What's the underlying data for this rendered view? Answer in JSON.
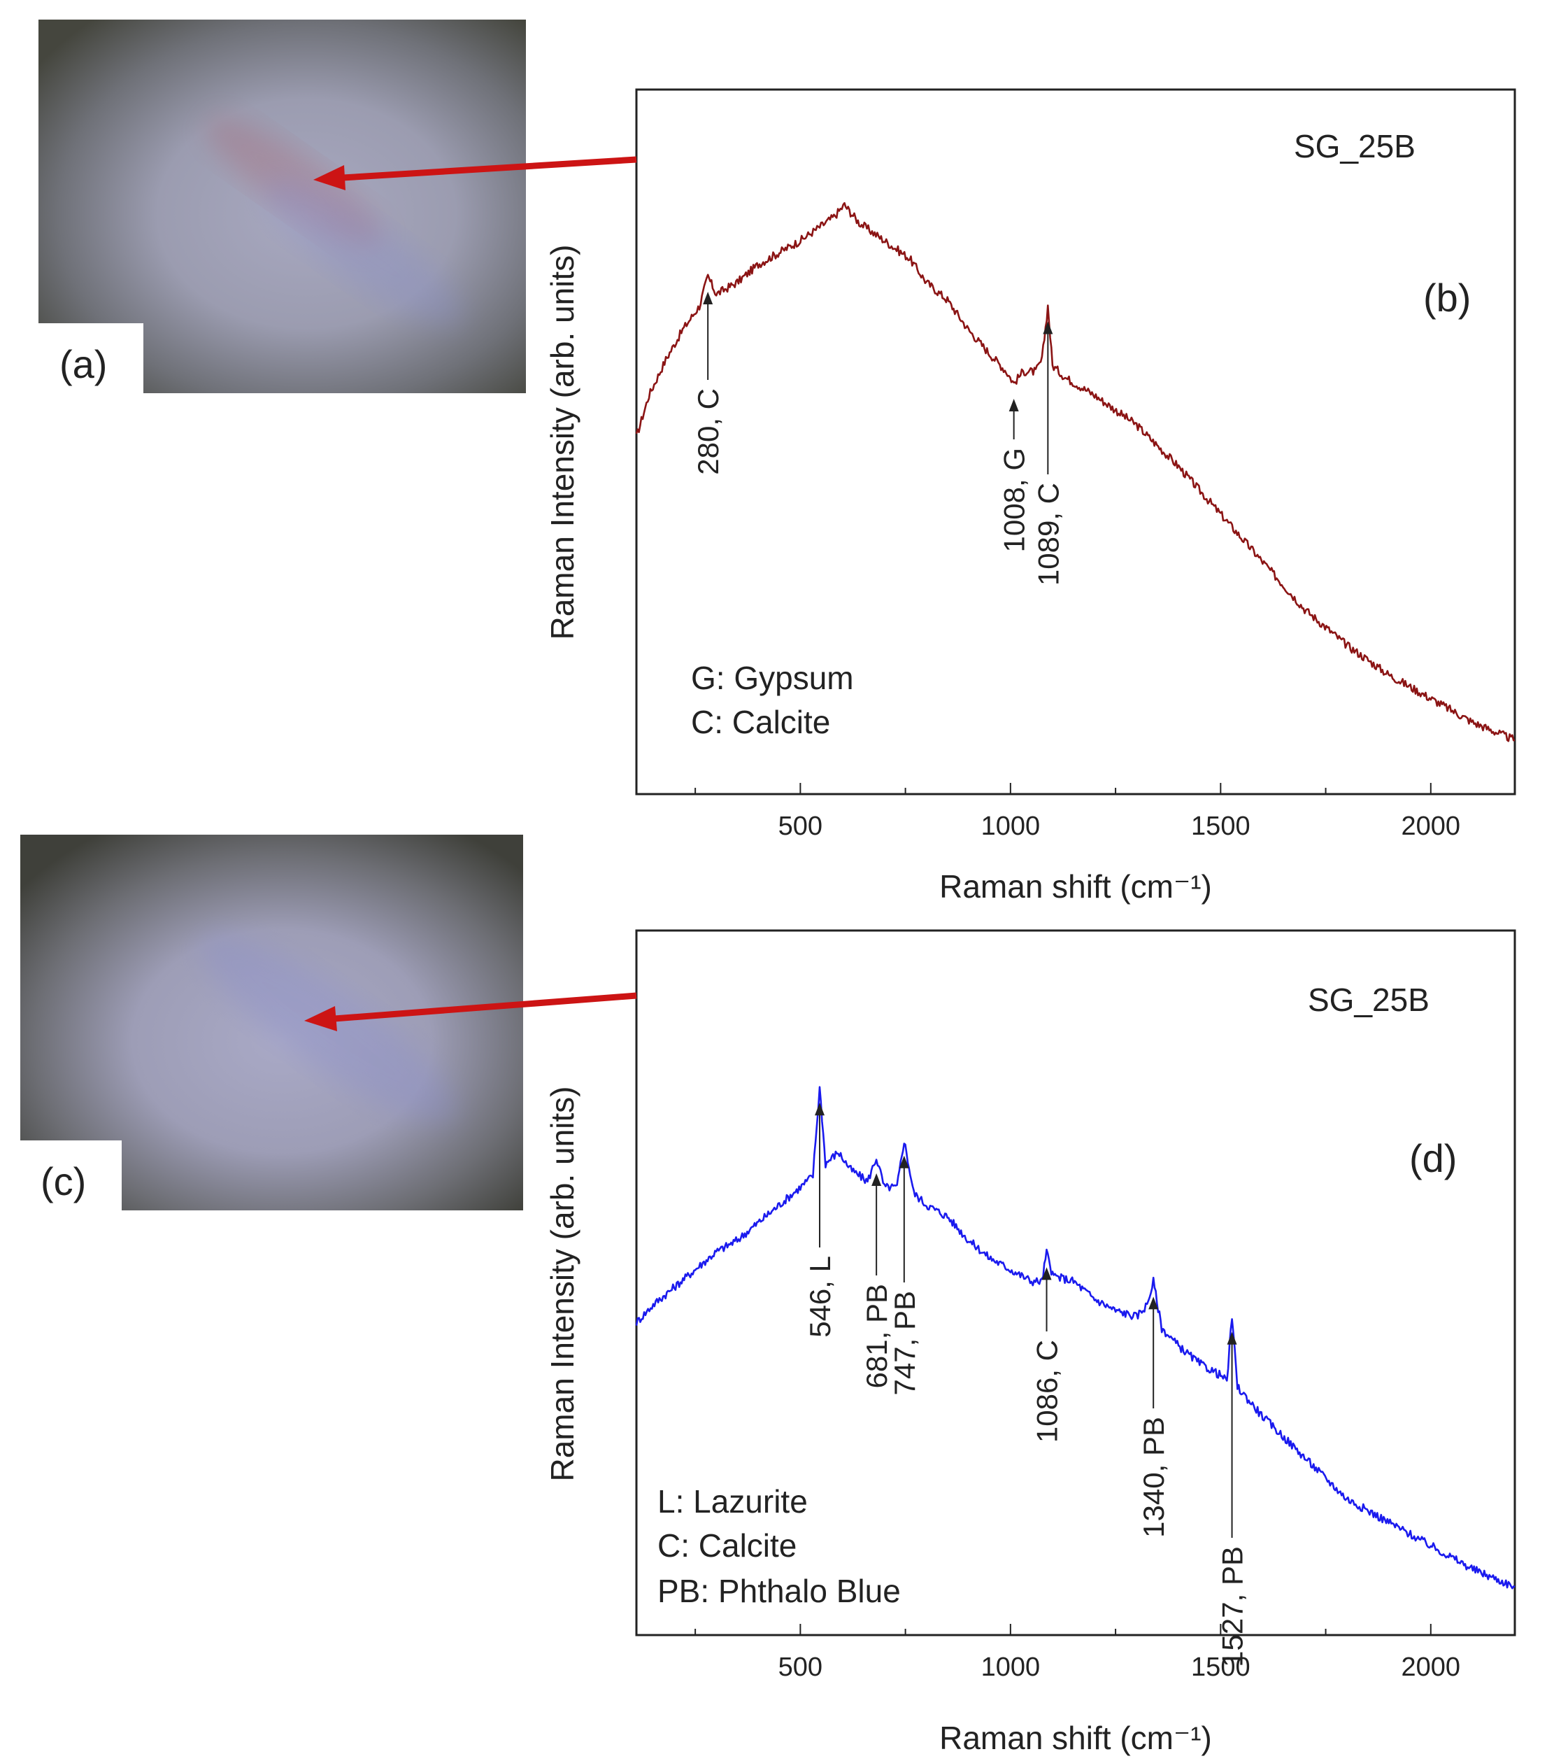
{
  "colors": {
    "spectrum_b": "#8b1414",
    "spectrum_d": "#1a1aee",
    "pointer_arrow": "#cc1414",
    "annotation_arrow": "#222222"
  },
  "panels": {
    "a": {
      "label": "(a)"
    },
    "c": {
      "label": "(c)"
    }
  },
  "chart_data": [
    {
      "type": "line",
      "panel_label": "(b)",
      "sample": "SG_25B",
      "xlabel": "Raman shift (cm⁻¹)",
      "ylabel": "Raman Intensity (arb. units)",
      "xlim": [
        110,
        2200
      ],
      "ylim": [
        0,
        100
      ],
      "xticks": [
        500,
        1000,
        1500,
        2000
      ],
      "series": [
        {
          "name": "SG_25B spectrum",
          "color": "#8b1414",
          "x": [
            110,
            140,
            180,
            220,
            260,
            280,
            300,
            350,
            400,
            450,
            500,
            540,
            580,
            605,
            640,
            680,
            720,
            760,
            800,
            850,
            900,
            950,
            990,
            1008,
            1030,
            1060,
            1075,
            1089,
            1100,
            1130,
            1200,
            1300,
            1400,
            1500,
            1600,
            1700,
            1800,
            1900,
            2000,
            2100,
            2200
          ],
          "y": [
            53,
            60,
            66,
            71,
            75,
            80,
            77,
            79,
            82,
            84,
            86,
            88,
            90,
            92,
            89,
            87,
            85,
            83,
            79,
            76,
            71,
            67,
            64,
            62,
            64,
            64,
            66,
            75,
            65,
            63,
            60,
            55,
            48,
            40,
            32,
            24,
            18,
            13,
            9,
            5,
            2
          ]
        }
      ],
      "annotations": [
        {
          "x": 280,
          "label": "280, C"
        },
        {
          "x": 1008,
          "label": "1008, G"
        },
        {
          "x": 1089,
          "label": "1089, C"
        }
      ],
      "legend_text": [
        "G: Gypsum",
        "C: Calcite"
      ]
    },
    {
      "type": "line",
      "panel_label": "(d)",
      "sample": "SG_25B",
      "xlabel": "Raman shift (cm⁻¹)",
      "ylabel": "Raman Intensity (arb. units)",
      "xlim": [
        110,
        2200
      ],
      "ylim": [
        0,
        100
      ],
      "xticks": [
        500,
        1000,
        1500,
        2000
      ],
      "series": [
        {
          "name": "SG_25B spectrum",
          "color": "#1a1aee",
          "x": [
            110,
            150,
            200,
            250,
            300,
            350,
            400,
            450,
            500,
            530,
            546,
            560,
            590,
            620,
            660,
            681,
            700,
            730,
            747,
            770,
            800,
            850,
            900,
            950,
            1000,
            1050,
            1075,
            1086,
            1100,
            1150,
            1200,
            1250,
            1300,
            1325,
            1340,
            1360,
            1400,
            1450,
            1500,
            1515,
            1527,
            1540,
            1600,
            1700,
            1800,
            1900,
            2000,
            2100,
            2200
          ],
          "y": [
            47,
            50,
            53,
            56,
            59,
            61,
            64,
            67,
            70,
            72,
            87,
            74,
            76,
            73,
            71,
            75,
            70,
            70,
            78,
            69,
            67,
            65,
            61,
            58,
            56,
            54,
            54,
            59,
            55,
            54,
            51,
            49,
            48,
            50,
            54,
            46,
            43,
            40,
            38,
            37,
            48,
            36,
            31,
            24,
            17,
            13,
            9,
            5,
            2
          ]
        }
      ],
      "annotations": [
        {
          "x": 546,
          "label": "546, L"
        },
        {
          "x": 681,
          "label": "681, PB"
        },
        {
          "x": 747,
          "label": "747, PB"
        },
        {
          "x": 1086,
          "label": "1086, C"
        },
        {
          "x": 1340,
          "label": "1340, PB"
        },
        {
          "x": 1527,
          "label": "1527, PB"
        }
      ],
      "legend_text": [
        "L: Lazurite",
        "C: Calcite",
        "PB: Phthalo Blue"
      ]
    }
  ]
}
